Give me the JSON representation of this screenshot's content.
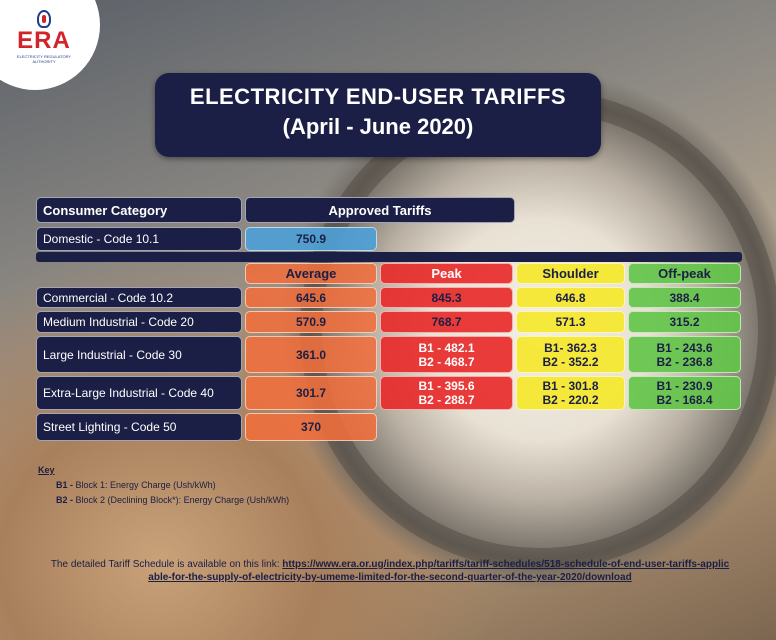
{
  "logo": {
    "name": "ERA",
    "subtitle": "ELECTRICITY REGULATORY AUTHORITY"
  },
  "title": {
    "line1": "ELECTRICITY END-USER TARIFFS",
    "line2": "(April - June 2020)"
  },
  "table": {
    "category_header": "Consumer Category",
    "approved_header": "Approved Tariffs",
    "domestic": {
      "label": "Domestic - Code 10.1",
      "value": "750.9"
    },
    "columns": [
      "Average",
      "Peak",
      "Shoulder",
      "Off-peak"
    ],
    "rows": [
      {
        "label": "Commercial - Code 10.2",
        "average": "645.6",
        "peak": [
          "845.3"
        ],
        "shoulder": [
          "646.8"
        ],
        "offpeak": [
          "388.4"
        ]
      },
      {
        "label": "Medium Industrial - Code 20",
        "average": "570.9",
        "peak": [
          "768.7"
        ],
        "shoulder": [
          "571.3"
        ],
        "offpeak": [
          "315.2"
        ]
      },
      {
        "label": "Large Industrial - Code 30",
        "average": "361.0",
        "peak": [
          "B1 - 482.1",
          "B2 - 468.7"
        ],
        "shoulder": [
          "B1- 362.3",
          "B2 - 352.2"
        ],
        "offpeak": [
          "B1 - 243.6",
          "B2 - 236.8"
        ]
      },
      {
        "label": "Extra-Large Industrial - Code 40",
        "average": "301.7",
        "peak": [
          "B1 - 395.6",
          "B2 - 288.7"
        ],
        "shoulder": [
          "B1 - 301.8",
          "B2 - 220.2"
        ],
        "offpeak": [
          "B1 - 230.9",
          "B2 - 168.4"
        ]
      },
      {
        "label": "Street Lighting - Code 50",
        "average": "370"
      }
    ]
  },
  "key": {
    "title": "Key",
    "b1_code": "B1 -",
    "b1_text": "Block 1: Energy Charge (Ush/kWh)",
    "b2_code": "B2 -",
    "b2_text": "Block 2 (Declining Block*): Energy Charge (Ush/kWh)"
  },
  "footer": {
    "text": "The detailed Tariff Schedule is available on this link:",
    "link": "https://www.era.or.ug/index.php/tariffs/tariff-schedules/518-schedule-of-end-user-tariffs-applicable-for-the-supply-of-electricity-by-umeme-limited-for-the-second-quarter-of-the-year-2020/download"
  },
  "colors": {
    "navy": "#1b1f45",
    "average": "#f06e3c",
    "peak": "#e82828",
    "shoulder": "#f5e828",
    "offpeak": "#62c448",
    "domestic": "#4ea0d6",
    "brand_red": "#d2232a"
  }
}
